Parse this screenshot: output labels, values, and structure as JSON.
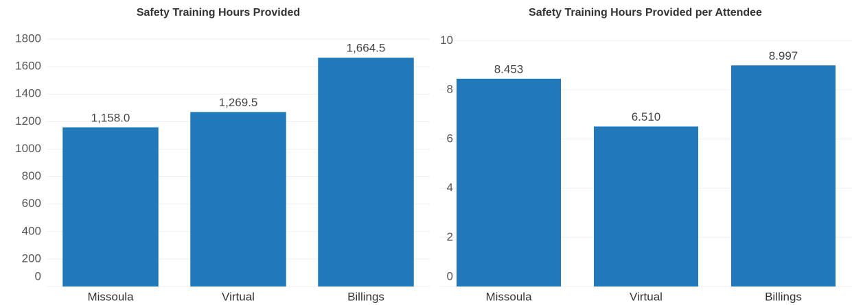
{
  "chart_data": [
    {
      "type": "bar",
      "title": "Safety Training Hours Provided",
      "categories": [
        "Missoula",
        "Virtual",
        "Billings"
      ],
      "values": [
        1158.0,
        1269.5,
        1664.5
      ],
      "value_labels": [
        "1,158.0",
        "1,269.5",
        "1,664.5"
      ],
      "color": "#2179b9",
      "ylim": [
        0,
        1860
      ],
      "yticks": [
        0,
        200,
        400,
        600,
        800,
        1000,
        1200,
        1400,
        1600,
        1800
      ],
      "grid": true
    },
    {
      "type": "bar",
      "title": "Safety Training Hours Provided per Attendee",
      "categories": [
        "Missoula",
        "Virtual",
        "Billings"
      ],
      "values": [
        8.453,
        6.51,
        8.997
      ],
      "value_labels": [
        "8.453",
        "6.510",
        "8.997"
      ],
      "color": "#2179b9",
      "ylim": [
        0,
        10.4
      ],
      "yticks": [
        0,
        2,
        4,
        6,
        8,
        10
      ],
      "grid": true
    }
  ]
}
